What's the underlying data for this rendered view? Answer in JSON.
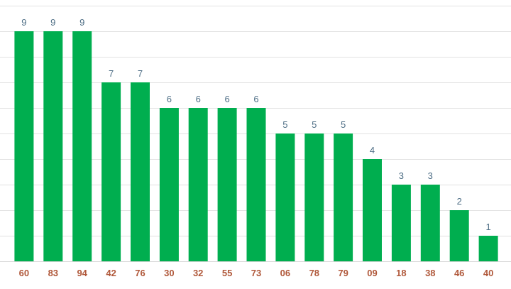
{
  "chart_data": {
    "type": "bar",
    "categories": [
      "60",
      "83",
      "94",
      "42",
      "76",
      "30",
      "32",
      "55",
      "73",
      "06",
      "78",
      "79",
      "09",
      "18",
      "38",
      "46",
      "40"
    ],
    "values": [
      9,
      9,
      9,
      7,
      7,
      6,
      6,
      6,
      6,
      5,
      5,
      5,
      4,
      3,
      3,
      2,
      1
    ],
    "title": "",
    "xlabel": "",
    "ylabel": "",
    "ylim": [
      0,
      10
    ],
    "grid": true,
    "data_labels": true,
    "colors": {
      "bar": "#00ae4f",
      "value_label": "#4f6f86",
      "tick_label": "#b0583a",
      "grid": "#e2e2e2"
    }
  }
}
